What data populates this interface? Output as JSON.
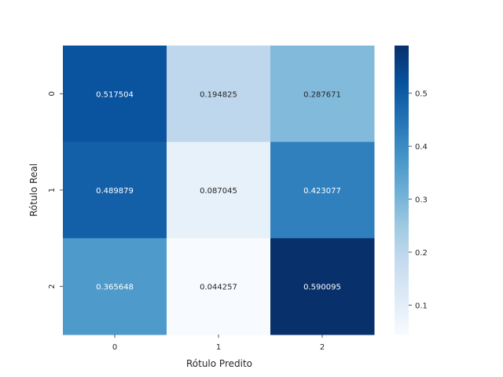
{
  "chart_data": {
    "type": "heatmap",
    "title": "",
    "xlabel": "Rótulo Predito",
    "ylabel": "Rótulo Real",
    "x_categories": [
      "0",
      "1",
      "2"
    ],
    "y_categories": [
      "0",
      "1",
      "2"
    ],
    "values": [
      [
        0.517504,
        0.194825,
        0.287671
      ],
      [
        0.489879,
        0.087045,
        0.423077
      ],
      [
        0.365648,
        0.044257,
        0.590095
      ]
    ],
    "value_labels": [
      [
        "0.517504",
        "0.194825",
        "0.287671"
      ],
      [
        "0.489879",
        "0.087045",
        "0.423077"
      ],
      [
        "0.365648",
        "0.044257",
        "0.590095"
      ]
    ],
    "colormap": "Blues",
    "colorbar": {
      "range": [
        0.044257,
        0.590095
      ],
      "ticks": [
        0.1,
        0.2,
        0.3,
        0.4,
        0.5
      ],
      "tick_labels": [
        "0.1",
        "0.2",
        "0.3",
        "0.4",
        "0.5"
      ]
    },
    "grid": false,
    "legend": "colorbar-right"
  }
}
